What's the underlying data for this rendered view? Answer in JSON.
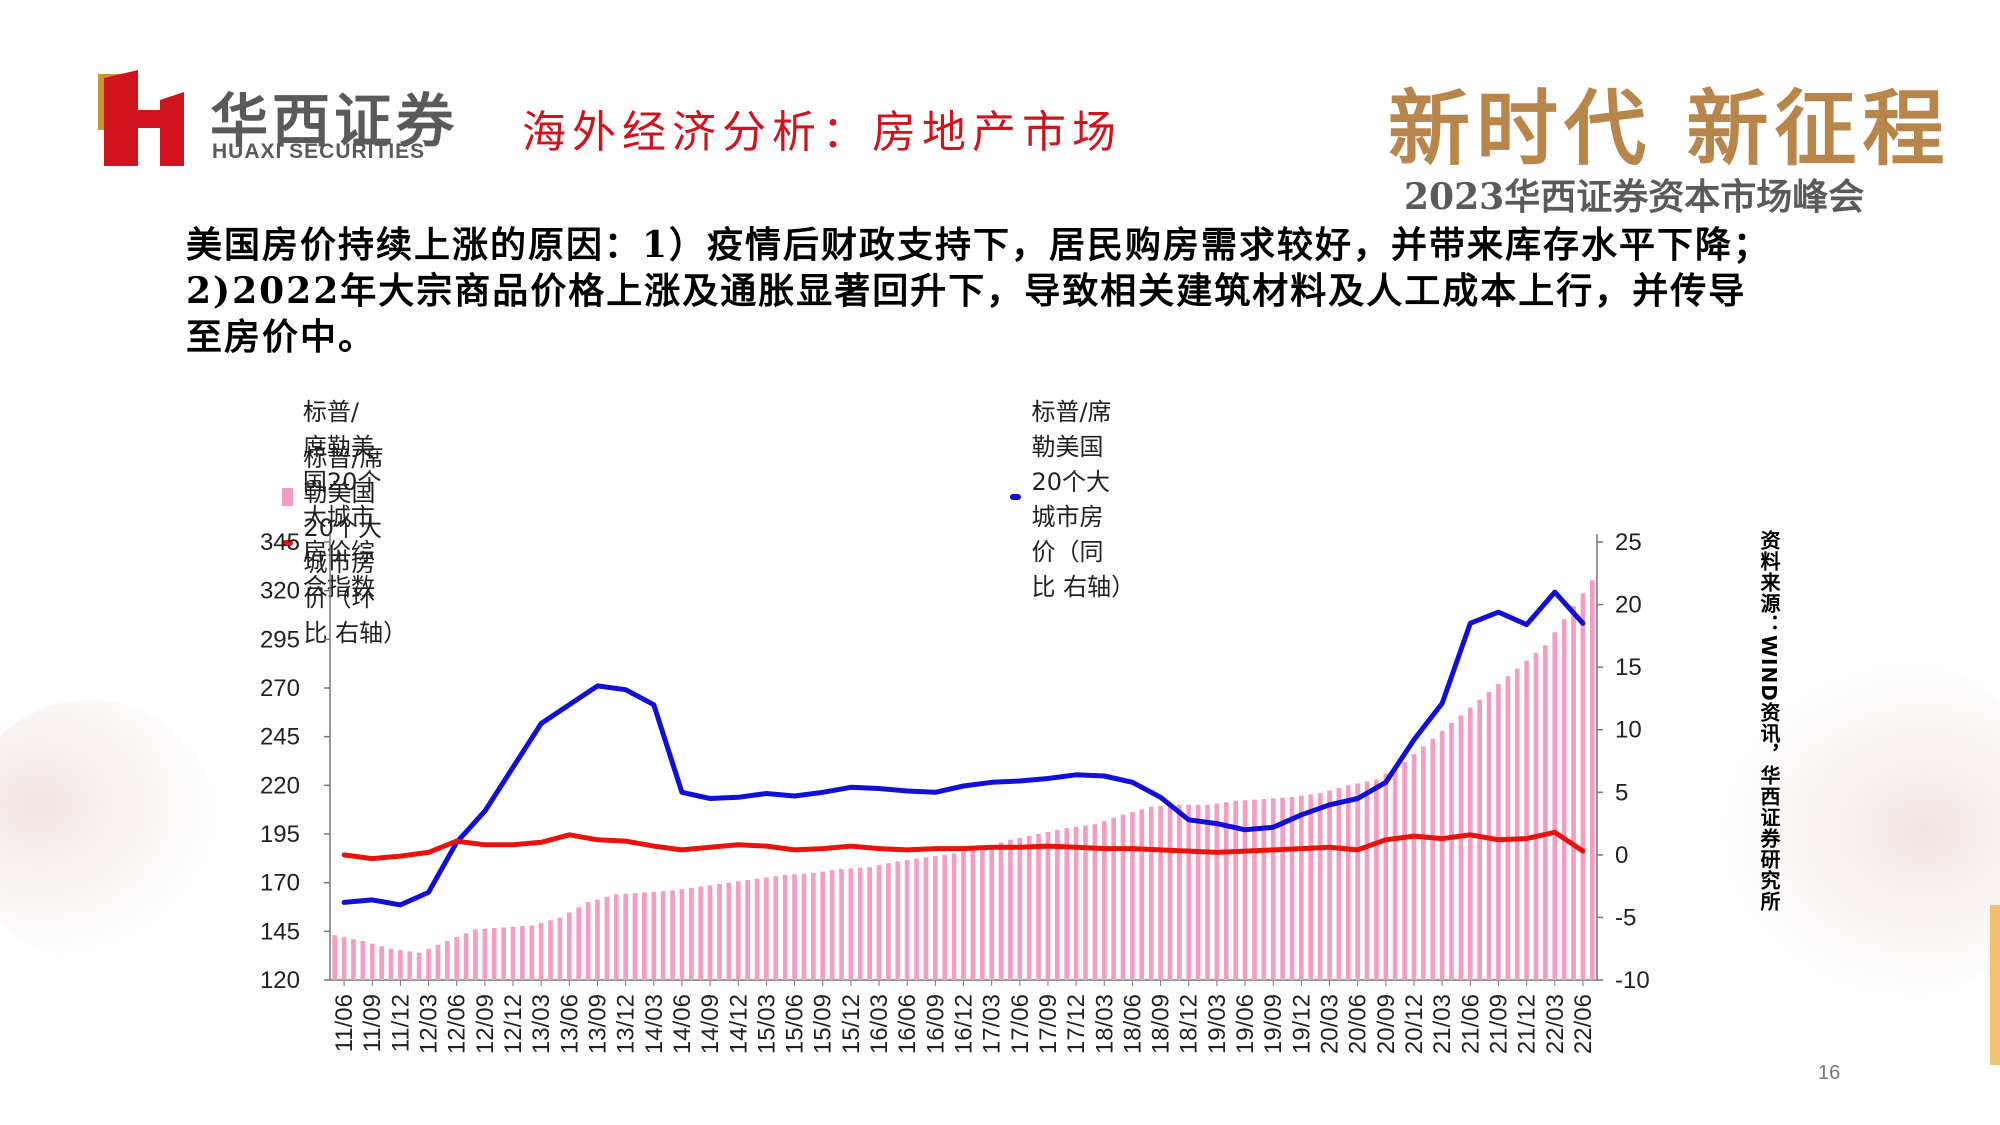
{
  "header": {
    "logo_cn": "华西证券",
    "logo_en": "HUAXI SECURITIES",
    "title": "海外经济分析：房地产市场",
    "slogan": "新时代 新征程",
    "event": "2023华西证券资本市场峰会"
  },
  "body_text": "美国房价持续上涨的原因：1）疫情后财政支持下，居民购房需求较好，并带来库存水平下降；2)2022年大宗商品价格上涨及通胀显著回升下，导致相关建筑材料及人工成本上行，并传导至房价中。",
  "source_note": "资料来源：WIND资讯，华西证券研究所",
  "page_number": "16",
  "colors": {
    "brand_red": "#d0141e",
    "bar_pink": "#f39dc5",
    "yoy_blue": "#1010d8",
    "mom_red": "#e8140c",
    "gold": "#b8864b"
  },
  "chart_data": {
    "type": "bar+line",
    "legend": [
      {
        "label": "标普/席勒美国20个大城市房价综合指数",
        "kind": "bar",
        "color": "#f39dc5"
      },
      {
        "label": "标普/席勒美国20个大城市房价（同比  右轴）",
        "kind": "line",
        "color": "#1010d8"
      },
      {
        "label": "标普/席勒美国20个大城市房价（环比    右轴）",
        "kind": "line",
        "color": "#e8140c"
      }
    ],
    "left_axis": {
      "min": 120,
      "max": 345,
      "ticks": [
        "345",
        "320",
        "295",
        "270",
        "245",
        "220",
        "195",
        "170",
        "145",
        "120"
      ]
    },
    "right_axis": {
      "min": -10,
      "max": 25,
      "ticks": [
        "25",
        "20",
        "15",
        "10",
        "5",
        "0",
        "-5",
        "-10"
      ]
    },
    "x_tick_labels": [
      "11/06",
      "11/09",
      "11/12",
      "12/03",
      "12/06",
      "12/09",
      "12/12",
      "13/03",
      "13/06",
      "13/09",
      "13/12",
      "14/03",
      "14/06",
      "14/09",
      "14/12",
      "15/03",
      "15/06",
      "15/09",
      "15/12",
      "16/03",
      "16/06",
      "16/09",
      "16/12",
      "17/03",
      "17/06",
      "17/09",
      "17/12",
      "18/03",
      "18/06",
      "18/09",
      "18/12",
      "19/03",
      "19/06",
      "19/09",
      "19/12",
      "20/03",
      "20/06",
      "20/09",
      "20/12",
      "21/03",
      "21/06",
      "21/09",
      "21/12",
      "22/03",
      "22/06"
    ],
    "quarterly_index": [
      143,
      140,
      136,
      134,
      140,
      146,
      147,
      148,
      152,
      160,
      164,
      165,
      166,
      168,
      170,
      172,
      174,
      175,
      177,
      178,
      181,
      183,
      185,
      188,
      192,
      195,
      198,
      200,
      205,
      209,
      210,
      210,
      212,
      213,
      214,
      216,
      220,
      223,
      232,
      244,
      256,
      268,
      280,
      292,
      312
    ],
    "quarterly_yoy": [
      -3.8,
      -3.6,
      -4.0,
      -3.0,
      1.0,
      3.5,
      7.0,
      10.5,
      12.0,
      13.5,
      13.2,
      12.0,
      5.0,
      4.5,
      4.6,
      4.9,
      4.7,
      5.0,
      5.4,
      5.3,
      5.1,
      5.0,
      5.5,
      5.8,
      5.9,
      6.1,
      6.4,
      6.3,
      5.8,
      4.6,
      2.8,
      2.5,
      2.0,
      2.2,
      3.2,
      4.0,
      4.5,
      5.8,
      9.2,
      12.1,
      18.5,
      19.4,
      18.4,
      21.0,
      18.5
    ],
    "quarterly_mom": [
      0.0,
      -0.3,
      -0.1,
      0.2,
      1.1,
      0.8,
      0.8,
      1.0,
      1.6,
      1.2,
      1.1,
      0.7,
      0.4,
      0.6,
      0.8,
      0.7,
      0.4,
      0.5,
      0.7,
      0.5,
      0.4,
      0.5,
      0.5,
      0.6,
      0.6,
      0.7,
      0.6,
      0.5,
      0.5,
      0.4,
      0.3,
      0.2,
      0.3,
      0.4,
      0.5,
      0.6,
      0.4,
      1.2,
      1.5,
      1.3,
      1.6,
      1.2,
      1.3,
      1.8,
      0.3
    ]
  }
}
